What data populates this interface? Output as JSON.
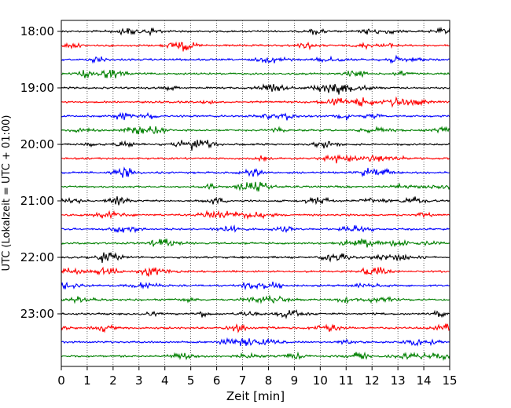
{
  "chart_data": {
    "type": "line",
    "title": "",
    "xlabel": "Zeit  [min]",
    "ylabel": "UTC (Lokalzeit = UTC + 01:00)",
    "xlim": [
      0,
      15
    ],
    "x_ticks": [
      0,
      1,
      2,
      3,
      4,
      5,
      6,
      7,
      8,
      9,
      10,
      11,
      12,
      13,
      14,
      15
    ],
    "y_ticks": [
      "18:00",
      "19:00",
      "20:00",
      "21:00",
      "22:00",
      "23:00"
    ],
    "y_tick_trace_index": [
      0,
      4,
      8,
      12,
      16,
      20
    ],
    "trace_interval_minutes": 15,
    "trace_count": 24,
    "trace_colors": [
      "#000000",
      "#ff0000",
      "#0000ff",
      "#008000"
    ],
    "grid": "vertical dotted",
    "legend": "none"
  }
}
